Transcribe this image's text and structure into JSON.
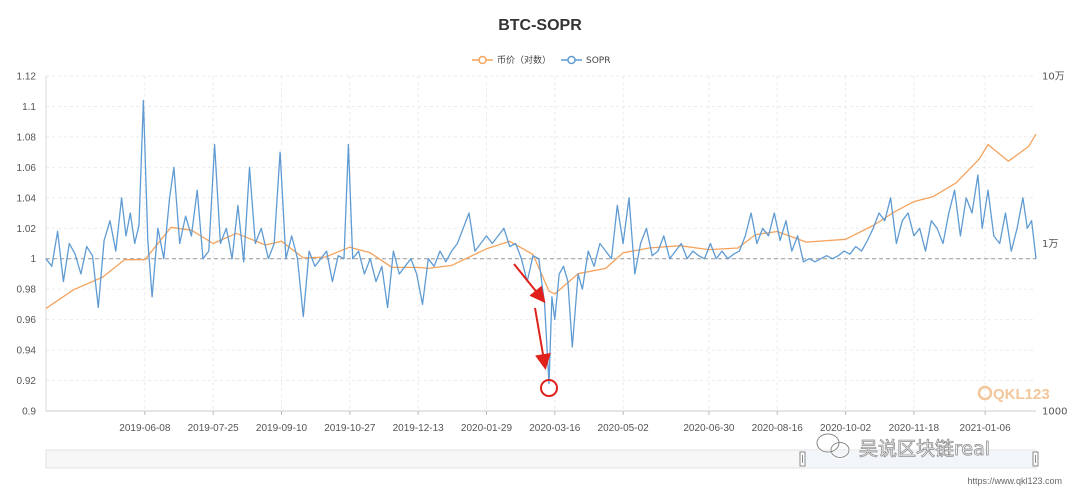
{
  "chart_data": {
    "type": "line",
    "title": "BTC-SOPR",
    "legend": [
      {
        "name": "币价（对数）",
        "color": "#f5a35d"
      },
      {
        "name": "SOPR",
        "color": "#5f9bd3"
      }
    ],
    "legend_position": "top-center",
    "grid": true,
    "y_left": {
      "ticks": [
        "1.12",
        "1.1",
        "1.08",
        "1.06",
        "1.04",
        "1.02",
        "1",
        "0.98",
        "0.96",
        "0.94",
        "0.92",
        "0.9"
      ],
      "range": [
        0.9,
        1.12
      ]
    },
    "y_right": {
      "ticks": [
        "10万",
        "1万",
        "1000"
      ],
      "scale": "log",
      "range": [
        1000,
        100000
      ]
    },
    "x_ticks": [
      "2019-06-08",
      "2019-07-25",
      "2019-09-10",
      "2019-10-27",
      "2019-12-13",
      "2020-01-29",
      "2020-03-16",
      "2020-05-02",
      "2020-06-30",
      "2020-08-16",
      "2020-10-02",
      "2020-11-18",
      "2021-01-06"
    ],
    "x_range": [
      "2019-04-01",
      "2021-02-10"
    ],
    "reference_line": 1,
    "series": [
      {
        "name": "SOPR",
        "axis": "left",
        "points": [
          [
            "2019-04-01",
            1.0
          ],
          [
            "2019-04-05",
            0.995
          ],
          [
            "2019-04-09",
            1.018
          ],
          [
            "2019-04-13",
            0.985
          ],
          [
            "2019-04-17",
            1.01
          ],
          [
            "2019-04-21",
            1.003
          ],
          [
            "2019-04-25",
            0.99
          ],
          [
            "2019-04-29",
            1.008
          ],
          [
            "2019-05-03",
            1.002
          ],
          [
            "2019-05-07",
            0.968
          ],
          [
            "2019-05-11",
            1.012
          ],
          [
            "2019-05-15",
            1.025
          ],
          [
            "2019-05-19",
            1.005
          ],
          [
            "2019-05-23",
            1.04
          ],
          [
            "2019-05-26",
            1.015
          ],
          [
            "2019-05-29",
            1.03
          ],
          [
            "2019-06-01",
            1.01
          ],
          [
            "2019-06-04",
            1.022
          ],
          [
            "2019-06-07",
            1.104
          ],
          [
            "2019-06-10",
            1.012
          ],
          [
            "2019-06-13",
            0.975
          ],
          [
            "2019-06-17",
            1.02
          ],
          [
            "2019-06-21",
            1.0
          ],
          [
            "2019-06-25",
            1.04
          ],
          [
            "2019-06-28",
            1.06
          ],
          [
            "2019-07-02",
            1.01
          ],
          [
            "2019-07-06",
            1.028
          ],
          [
            "2019-07-10",
            1.015
          ],
          [
            "2019-07-14",
            1.045
          ],
          [
            "2019-07-18",
            1.0
          ],
          [
            "2019-07-22",
            1.005
          ],
          [
            "2019-07-26",
            1.075
          ],
          [
            "2019-07-30",
            1.01
          ],
          [
            "2019-08-03",
            1.02
          ],
          [
            "2019-08-07",
            1.0
          ],
          [
            "2019-08-11",
            1.035
          ],
          [
            "2019-08-15",
            0.998
          ],
          [
            "2019-08-19",
            1.06
          ],
          [
            "2019-08-23",
            1.01
          ],
          [
            "2019-08-27",
            1.02
          ],
          [
            "2019-09-01",
            1.0
          ],
          [
            "2019-09-05",
            1.01
          ],
          [
            "2019-09-09",
            1.07
          ],
          [
            "2019-09-13",
            1.0
          ],
          [
            "2019-09-17",
            1.015
          ],
          [
            "2019-09-21",
            1.0
          ],
          [
            "2019-09-25",
            0.962
          ],
          [
            "2019-09-29",
            1.005
          ],
          [
            "2019-10-03",
            0.995
          ],
          [
            "2019-10-07",
            1.0
          ],
          [
            "2019-10-11",
            1.005
          ],
          [
            "2019-10-15",
            0.985
          ],
          [
            "2019-10-19",
            1.002
          ],
          [
            "2019-10-23",
            1.0
          ],
          [
            "2019-10-26",
            1.075
          ],
          [
            "2019-10-29",
            1.0
          ],
          [
            "2019-11-02",
            1.005
          ],
          [
            "2019-11-06",
            0.99
          ],
          [
            "2019-11-10",
            1.0
          ],
          [
            "2019-11-14",
            0.985
          ],
          [
            "2019-11-18",
            0.995
          ],
          [
            "2019-11-22",
            0.968
          ],
          [
            "2019-11-26",
            1.005
          ],
          [
            "2019-11-30",
            0.99
          ],
          [
            "2019-12-04",
            0.995
          ],
          [
            "2019-12-08",
            1.0
          ],
          [
            "2019-12-12",
            0.99
          ],
          [
            "2019-12-16",
            0.97
          ],
          [
            "2019-12-20",
            1.0
          ],
          [
            "2019-12-24",
            0.995
          ],
          [
            "2019-12-28",
            1.005
          ],
          [
            "2020-01-01",
            0.998
          ],
          [
            "2020-01-05",
            1.005
          ],
          [
            "2020-01-09",
            1.01
          ],
          [
            "2020-01-13",
            1.02
          ],
          [
            "2020-01-17",
            1.03
          ],
          [
            "2020-01-21",
            1.005
          ],
          [
            "2020-01-25",
            1.01
          ],
          [
            "2020-01-29",
            1.015
          ],
          [
            "2020-02-02",
            1.01
          ],
          [
            "2020-02-06",
            1.015
          ],
          [
            "2020-02-10",
            1.02
          ],
          [
            "2020-02-14",
            1.008
          ],
          [
            "2020-02-18",
            1.01
          ],
          [
            "2020-02-22",
            1.0
          ],
          [
            "2020-02-26",
            0.985
          ],
          [
            "2020-03-01",
            1.002
          ],
          [
            "2020-03-05",
            1.0
          ],
          [
            "2020-03-09",
            0.97
          ],
          [
            "2020-03-12",
            0.918
          ],
          [
            "2020-03-14",
            0.975
          ],
          [
            "2020-03-16",
            0.96
          ],
          [
            "2020-03-19",
            0.99
          ],
          [
            "2020-03-22",
            0.995
          ],
          [
            "2020-03-25",
            0.985
          ],
          [
            "2020-03-28",
            0.942
          ],
          [
            "2020-04-01",
            0.99
          ],
          [
            "2020-04-04",
            0.98
          ],
          [
            "2020-04-08",
            1.005
          ],
          [
            "2020-04-12",
            0.995
          ],
          [
            "2020-04-16",
            1.01
          ],
          [
            "2020-04-20",
            1.005
          ],
          [
            "2020-04-24",
            1.0
          ],
          [
            "2020-04-28",
            1.035
          ],
          [
            "2020-05-02",
            1.01
          ],
          [
            "2020-05-06",
            1.04
          ],
          [
            "2020-05-10",
            0.99
          ],
          [
            "2020-05-14",
            1.01
          ],
          [
            "2020-05-18",
            1.02
          ],
          [
            "2020-05-22",
            1.002
          ],
          [
            "2020-05-26",
            1.005
          ],
          [
            "2020-05-30",
            1.015
          ],
          [
            "2020-06-03",
            1.0
          ],
          [
            "2020-06-07",
            1.005
          ],
          [
            "2020-06-11",
            1.01
          ],
          [
            "2020-06-15",
            1.0
          ],
          [
            "2020-06-19",
            1.005
          ],
          [
            "2020-06-23",
            1.002
          ],
          [
            "2020-06-27",
            1.0
          ],
          [
            "2020-07-01",
            1.01
          ],
          [
            "2020-07-05",
            1.0
          ],
          [
            "2020-07-09",
            1.005
          ],
          [
            "2020-07-13",
            1.0
          ],
          [
            "2020-07-17",
            1.003
          ],
          [
            "2020-07-21",
            1.005
          ],
          [
            "2020-07-25",
            1.015
          ],
          [
            "2020-07-29",
            1.03
          ],
          [
            "2020-08-02",
            1.01
          ],
          [
            "2020-08-06",
            1.02
          ],
          [
            "2020-08-10",
            1.015
          ],
          [
            "2020-08-14",
            1.03
          ],
          [
            "2020-08-18",
            1.012
          ],
          [
            "2020-08-22",
            1.025
          ],
          [
            "2020-08-26",
            1.005
          ],
          [
            "2020-08-30",
            1.015
          ],
          [
            "2020-09-03",
            0.998
          ],
          [
            "2020-09-07",
            1.0
          ],
          [
            "2020-09-11",
            0.998
          ],
          [
            "2020-09-15",
            1.0
          ],
          [
            "2020-09-19",
            1.002
          ],
          [
            "2020-09-23",
            1.0
          ],
          [
            "2020-09-27",
            1.002
          ],
          [
            "2020-10-01",
            1.005
          ],
          [
            "2020-10-05",
            1.003
          ],
          [
            "2020-10-09",
            1.008
          ],
          [
            "2020-10-13",
            1.005
          ],
          [
            "2020-10-17",
            1.012
          ],
          [
            "2020-10-21",
            1.02
          ],
          [
            "2020-10-25",
            1.03
          ],
          [
            "2020-10-29",
            1.025
          ],
          [
            "2020-11-02",
            1.04
          ],
          [
            "2020-11-06",
            1.01
          ],
          [
            "2020-11-10",
            1.025
          ],
          [
            "2020-11-14",
            1.03
          ],
          [
            "2020-11-18",
            1.015
          ],
          [
            "2020-11-22",
            1.02
          ],
          [
            "2020-11-26",
            1.005
          ],
          [
            "2020-11-30",
            1.025
          ],
          [
            "2020-12-04",
            1.02
          ],
          [
            "2020-12-08",
            1.01
          ],
          [
            "2020-12-12",
            1.03
          ],
          [
            "2020-12-16",
            1.045
          ],
          [
            "2020-12-20",
            1.015
          ],
          [
            "2020-12-24",
            1.04
          ],
          [
            "2020-12-28",
            1.03
          ],
          [
            "2021-01-01",
            1.055
          ],
          [
            "2021-01-04",
            1.02
          ],
          [
            "2021-01-08",
            1.045
          ],
          [
            "2021-01-12",
            1.015
          ],
          [
            "2021-01-16",
            1.01
          ],
          [
            "2021-01-20",
            1.03
          ],
          [
            "2021-01-24",
            1.005
          ],
          [
            "2021-01-28",
            1.02
          ],
          [
            "2021-02-01",
            1.04
          ],
          [
            "2021-02-04",
            1.02
          ],
          [
            "2021-02-07",
            1.025
          ],
          [
            "2021-02-10",
            1.0
          ]
        ]
      },
      {
        "name": "币价（对数）",
        "axis": "right",
        "points": [
          [
            "2019-04-01",
            4100
          ],
          [
            "2019-04-20",
            5300
          ],
          [
            "2019-05-10",
            6300
          ],
          [
            "2019-05-25",
            8000
          ],
          [
            "2019-06-08",
            8000
          ],
          [
            "2019-06-26",
            12500
          ],
          [
            "2019-07-10",
            12000
          ],
          [
            "2019-07-25",
            10000
          ],
          [
            "2019-08-10",
            11500
          ],
          [
            "2019-08-30",
            9800
          ],
          [
            "2019-09-10",
            10300
          ],
          [
            "2019-09-25",
            8200
          ],
          [
            "2019-10-10",
            8300
          ],
          [
            "2019-10-27",
            9500
          ],
          [
            "2019-11-10",
            8800
          ],
          [
            "2019-11-25",
            7200
          ],
          [
            "2019-12-13",
            7200
          ],
          [
            "2019-12-20",
            7100
          ],
          [
            "2020-01-05",
            7400
          ],
          [
            "2020-01-29",
            9300
          ],
          [
            "2020-02-14",
            10300
          ],
          [
            "2020-03-01",
            8600
          ],
          [
            "2020-03-12",
            5200
          ],
          [
            "2020-03-16",
            5000
          ],
          [
            "2020-04-01",
            6600
          ],
          [
            "2020-04-20",
            7100
          ],
          [
            "2020-05-02",
            8800
          ],
          [
            "2020-05-20",
            9400
          ],
          [
            "2020-06-10",
            9700
          ],
          [
            "2020-06-30",
            9200
          ],
          [
            "2020-07-20",
            9400
          ],
          [
            "2020-08-01",
            11300
          ],
          [
            "2020-08-16",
            11800
          ],
          [
            "2020-09-05",
            10200
          ],
          [
            "2020-10-02",
            10600
          ],
          [
            "2020-10-21",
            12800
          ],
          [
            "2020-11-05",
            15500
          ],
          [
            "2020-11-18",
            17800
          ],
          [
            "2020-12-01",
            19000
          ],
          [
            "2020-12-17",
            23000
          ],
          [
            "2021-01-02",
            32000
          ],
          [
            "2021-01-08",
            39000
          ],
          [
            "2021-01-22",
            31000
          ],
          [
            "2021-02-05",
            38000
          ],
          [
            "2021-02-10",
            45000
          ]
        ]
      }
    ],
    "annotations": [
      "arrow-to-low",
      "circle-at-low"
    ]
  },
  "watermarks": {
    "logo": "QKL123",
    "wechat": "吴说区块链real",
    "url": "https://www.qkl123.com"
  }
}
